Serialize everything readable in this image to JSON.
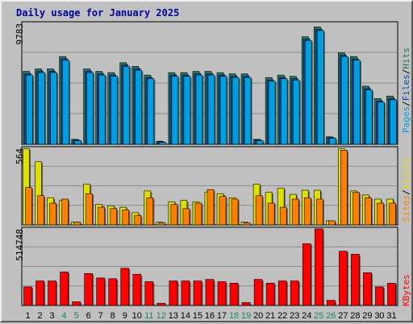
{
  "title": "Daily usage for January 2025",
  "colors": {
    "hits": "#1f7a6b",
    "files": "#0050b0",
    "pages": "#00a0e0",
    "visits": "#e0e000",
    "sites": "#ff8000",
    "kbytes": "#ff0000",
    "weekend_day": "#1a8a5a",
    "weekday_day": "#000000"
  },
  "legend": {
    "pages": "Pages",
    "files": "Files",
    "hits": "Hits",
    "sites": "Sites",
    "visits": "Visits",
    "kbytes": "KBytes",
    "sep": "/"
  },
  "chart_data": [
    {
      "type": "bar",
      "name": "hits-files-pages",
      "ymax_label": "9783",
      "ylim": [
        0,
        9783
      ],
      "categories": [
        "1",
        "2",
        "3",
        "4",
        "5",
        "6",
        "7",
        "8",
        "9",
        "10",
        "11",
        "12",
        "13",
        "14",
        "15",
        "16",
        "17",
        "18",
        "19",
        "20",
        "21",
        "22",
        "23",
        "24",
        "25",
        "26",
        "27",
        "28",
        "29",
        "30",
        "31"
      ],
      "weekend_days": [
        "4",
        "5",
        "11",
        "12",
        "18",
        "19",
        "25",
        "26"
      ],
      "series": [
        {
          "name": "Hits",
          "values": [
            5900,
            6100,
            6100,
            7100,
            400,
            6100,
            5900,
            5800,
            6600,
            6300,
            5600,
            250,
            5800,
            5800,
            5900,
            5900,
            5800,
            5700,
            5700,
            400,
            5400,
            5600,
            5500,
            8700,
            9500,
            600,
            7400,
            7100,
            4700,
            3700,
            3900
          ]
        },
        {
          "name": "Files",
          "values": [
            5700,
            5900,
            5900,
            6900,
            350,
            5900,
            5700,
            5600,
            6400,
            6100,
            5400,
            200,
            5600,
            5600,
            5700,
            5700,
            5600,
            5500,
            5500,
            350,
            5200,
            5400,
            5300,
            8500,
            9300,
            550,
            7200,
            6900,
            4500,
            3500,
            3700
          ]
        },
        {
          "name": "Pages",
          "values": [
            5600,
            5800,
            5800,
            6800,
            300,
            5800,
            5600,
            5500,
            6300,
            6000,
            5300,
            150,
            5500,
            5500,
            5600,
            5600,
            5500,
            5400,
            5400,
            300,
            5100,
            5300,
            5200,
            8400,
            9200,
            500,
            7100,
            6800,
            4400,
            3400,
            3600
          ]
        }
      ]
    },
    {
      "type": "bar",
      "name": "visits-sites",
      "ymax_label": "564",
      "ylim": [
        0,
        564
      ],
      "series": [
        {
          "name": "Visits",
          "values": [
            560,
            465,
            200,
            180,
            20,
            300,
            150,
            140,
            130,
            90,
            250,
            20,
            170,
            180,
            170,
            240,
            230,
            200,
            20,
            300,
            240,
            270,
            225,
            255,
            255,
            30,
            560,
            250,
            220,
            190,
            190
          ]
        },
        {
          "name": "Sites",
          "values": [
            275,
            215,
            160,
            190,
            20,
            230,
            130,
            120,
            110,
            70,
            200,
            15,
            150,
            120,
            160,
            260,
            210,
            190,
            15,
            215,
            160,
            130,
            190,
            200,
            190,
            30,
            550,
            240,
            200,
            160,
            160
          ]
        }
      ]
    },
    {
      "type": "bar",
      "name": "kbytes",
      "ymax_label": "514748",
      "ylim": [
        0,
        514748
      ],
      "series": [
        {
          "name": "KBytes",
          "values": [
            125000,
            165000,
            165000,
            225000,
            25000,
            215000,
            185000,
            180000,
            250000,
            210000,
            160000,
            15000,
            165000,
            165000,
            165000,
            175000,
            160000,
            150000,
            20000,
            175000,
            150000,
            165000,
            165000,
            415000,
            515000,
            35000,
            365000,
            345000,
            220000,
            125000,
            150000
          ]
        }
      ]
    }
  ]
}
